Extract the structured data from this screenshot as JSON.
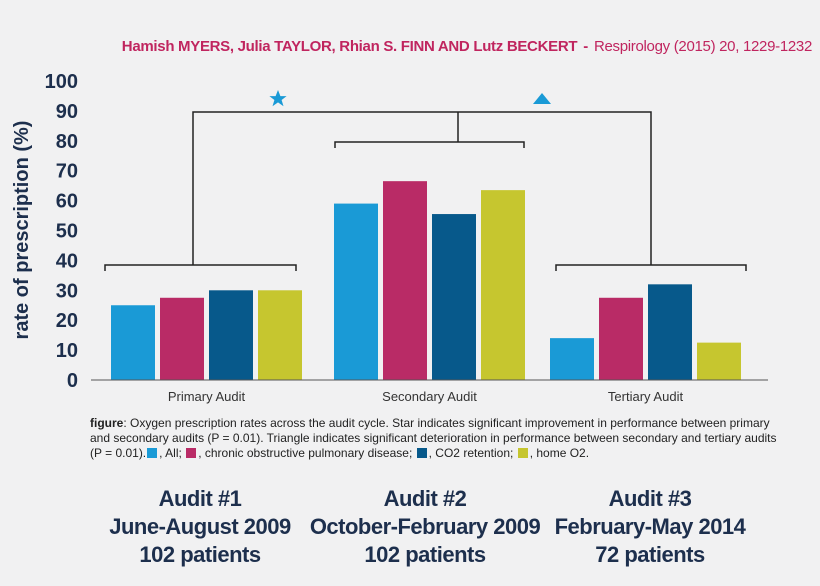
{
  "citation": {
    "authors": "Hamish MYERS, Julia TAYLOR, Rhian S. FINN AND Lutz BECKERT",
    "separator": "-",
    "journal": "Respirology (2015) 20, 1229-1232"
  },
  "chart_data": {
    "type": "bar",
    "ylabel": "rate of prescription (%)",
    "ylim": [
      0,
      100
    ],
    "yticks": [
      0,
      10,
      20,
      30,
      40,
      50,
      60,
      70,
      80,
      90,
      100
    ],
    "categories": [
      "Primary Audit",
      "Secondary Audit",
      "Tertiary Audit"
    ],
    "series": [
      {
        "name": "All",
        "color": "#1a9ad6",
        "values": [
          25,
          59,
          14
        ]
      },
      {
        "name": "chronic obstructive pulmonary disease",
        "color": "#b92b66",
        "values": [
          27.5,
          66.5,
          27.5
        ]
      },
      {
        "name": "CO2 retention",
        "color": "#07598b",
        "values": [
          30,
          55.5,
          32
        ]
      },
      {
        "name": "home O2",
        "color": "#c6c62f",
        "values": [
          30,
          63.5,
          12.5
        ]
      }
    ],
    "grid": false,
    "annotations": [
      {
        "symbol": "star-icon",
        "meaning": "primary vs secondary",
        "color": "#1a9ad6"
      },
      {
        "symbol": "triangle-icon",
        "meaning": "secondary vs tertiary",
        "color": "#1a9ad6"
      }
    ]
  },
  "caption": {
    "label": "figure",
    "text": ": Oxygen prescription rates across the audit cycle. Star indicates significant improvement in performance between primary and secondary audits (P = 0.01). Triangle indicates significant deterioration in performance between secondary and tertiary audits (P = 0.01).",
    "legend": [
      ", All;",
      ", chronic obstructive pulmonary disease;",
      ", CO2 retention;",
      ", home O2."
    ]
  },
  "audits": [
    {
      "title": "Audit #1",
      "period": "June-August 2009",
      "patients": "102 patients"
    },
    {
      "title": "Audit #2",
      "period": "October-February 2009",
      "patients": "102 patients"
    },
    {
      "title": "Audit #3",
      "period": "February-May 2014",
      "patients": "72 patients"
    }
  ]
}
